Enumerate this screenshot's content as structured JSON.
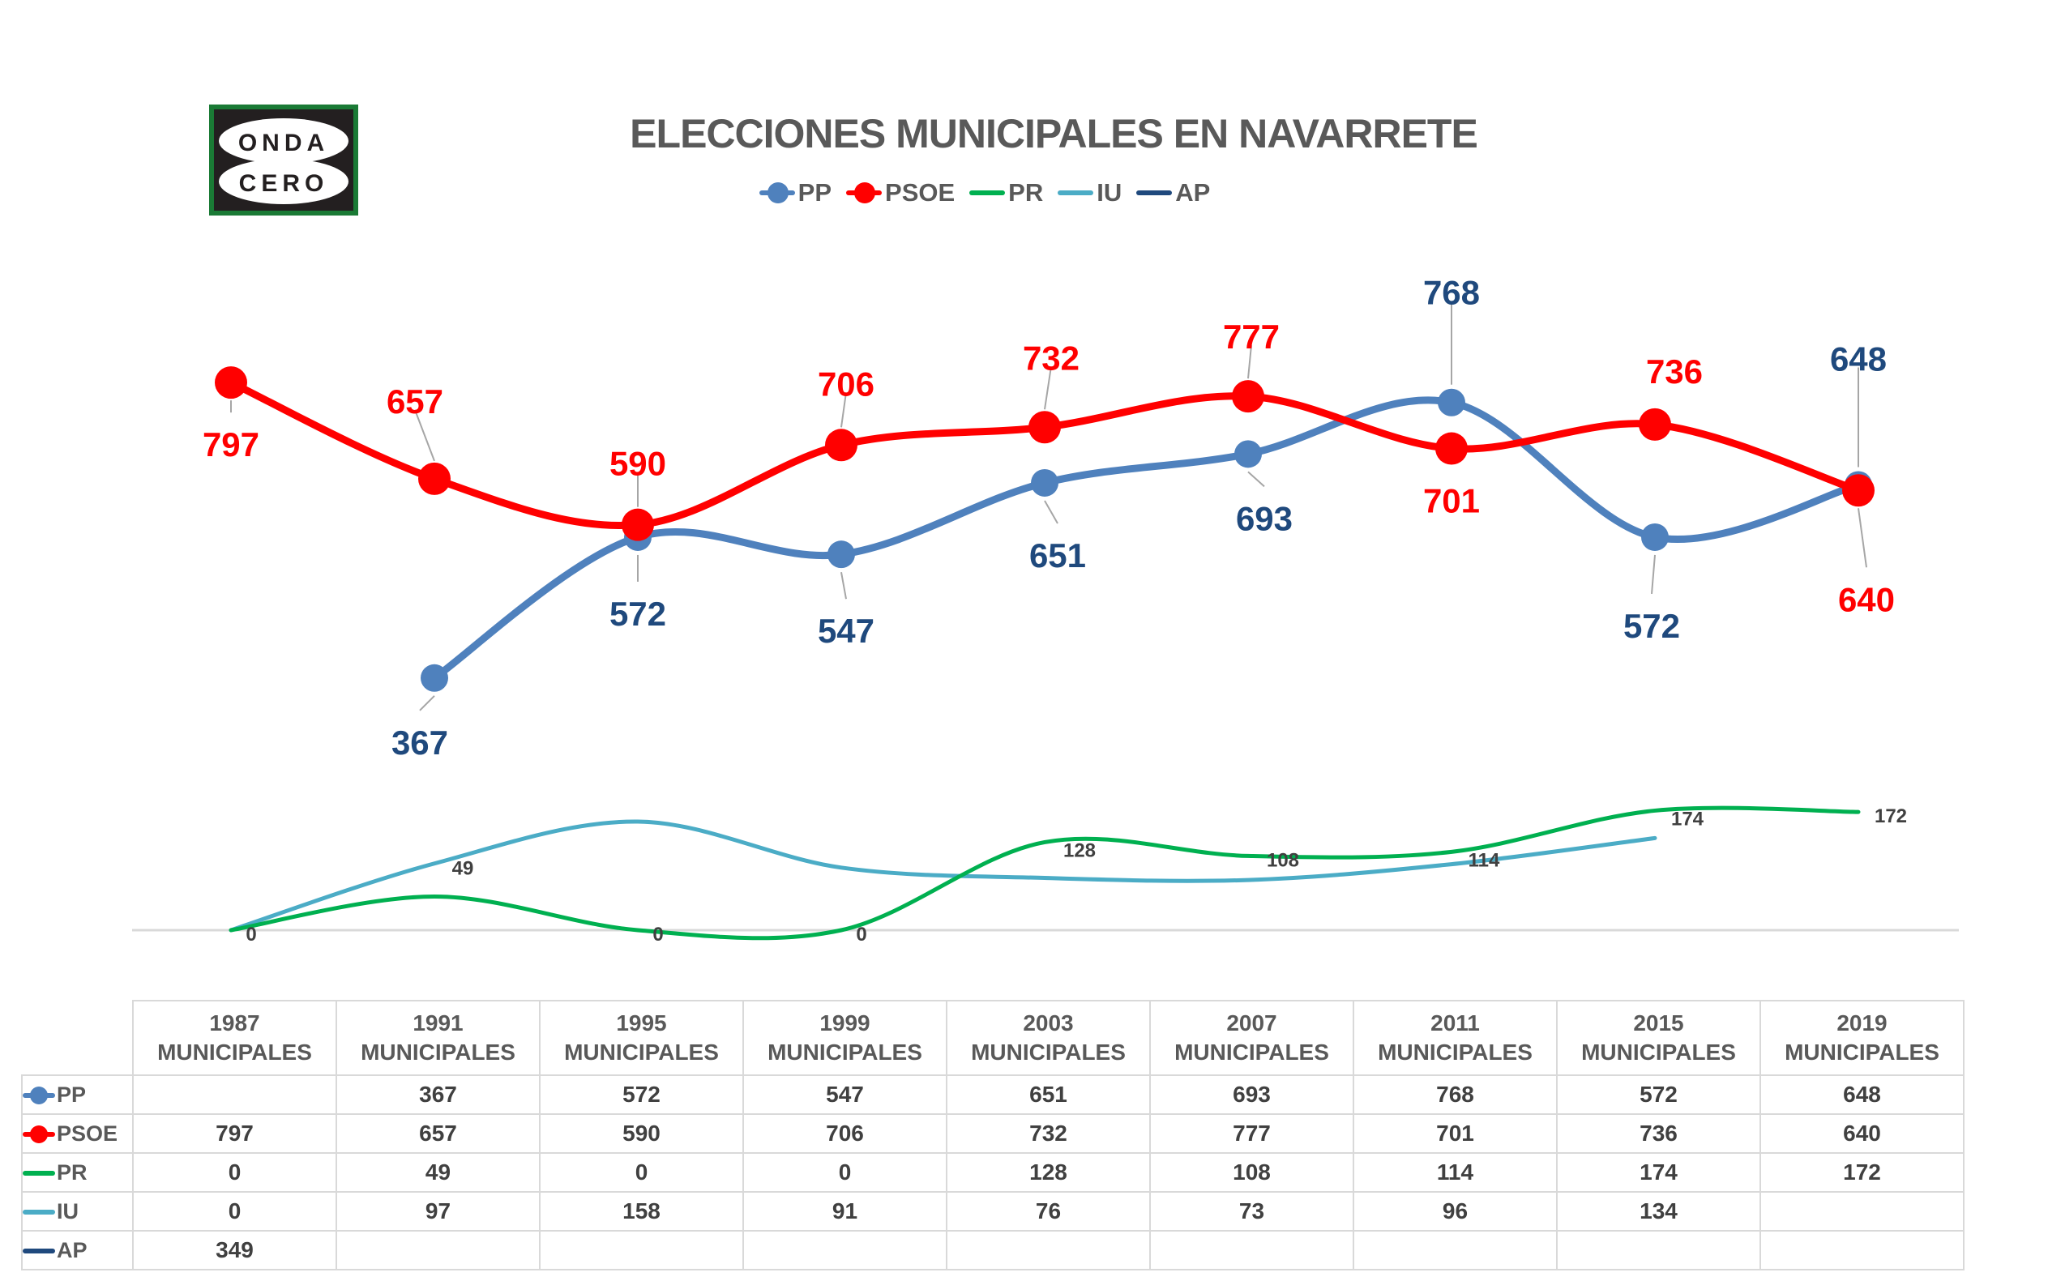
{
  "logo": {
    "line1": "ONDA",
    "line2": "CERO"
  },
  "chart_data": {
    "type": "line",
    "title": "ELECCIONES MUNICIPALES EN NAVARRETE",
    "categories": [
      "1987 MUNICIPALES",
      "1991 MUNICIPALES",
      "1995 MUNICIPALES",
      "1999 MUNICIPALES",
      "2003 MUNICIPALES",
      "2007 MUNICIPALES",
      "2011 MUNICIPALES",
      "2015 MUNICIPALES",
      "2019 MUNICIPALES"
    ],
    "category_years": [
      "1987",
      "1991",
      "1995",
      "1999",
      "2003",
      "2007",
      "2011",
      "2015",
      "2019"
    ],
    "category_sub": "MUNICIPALES",
    "smoothed": true,
    "legend_position": "top",
    "grid": false,
    "ylim": [
      0,
      800
    ],
    "series": [
      {
        "name": "PP",
        "color": "#4F81BD",
        "label_color": "#1F497D",
        "markers": true,
        "values": [
          null,
          367,
          572,
          547,
          651,
          693,
          768,
          572,
          648
        ]
      },
      {
        "name": "PSOE",
        "color": "#FF0000",
        "label_color": "#FF0000",
        "markers": true,
        "values": [
          797,
          657,
          590,
          706,
          732,
          777,
          701,
          736,
          640
        ]
      },
      {
        "name": "PR",
        "color": "#00B050",
        "label_color": "#404040",
        "markers": false,
        "values": [
          0,
          49,
          0,
          0,
          128,
          108,
          114,
          174,
          172
        ]
      },
      {
        "name": "IU",
        "color": "#4BACC6",
        "label_color": null,
        "markers": false,
        "values": [
          0,
          97,
          158,
          91,
          76,
          73,
          96,
          134,
          null
        ]
      },
      {
        "name": "AP",
        "color": "#1F497D",
        "label_color": null,
        "markers": false,
        "values": [
          349,
          null,
          null,
          null,
          null,
          null,
          null,
          null,
          null
        ]
      }
    ]
  }
}
